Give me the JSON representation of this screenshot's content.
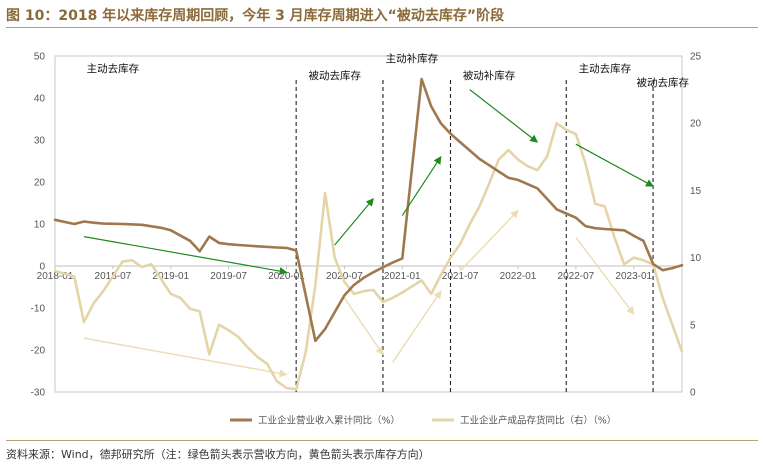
{
  "header": {
    "title": "图 10：2018 年以来库存周期回顾，今年 3 月库存周期进入“被动去库存”阶段"
  },
  "footer": {
    "source": "资料来源：Wind，德邦研究所（注：绿色箭头表示营收方向，黄色箭头表示库存方向）"
  },
  "colors": {
    "revenue": "#a07850",
    "inventory": "#e4d4a8",
    "green_arrow": "#1f8a1f",
    "yellow_arrow": "#ecdcb4",
    "divider": "#222222",
    "title": "#8b6a3a"
  },
  "chart_data": {
    "type": "line",
    "x_tick_labels": [
      "2018-01",
      "2018-07",
      "2019-01",
      "2019-07",
      "2020-01",
      "2020-07",
      "2021-01",
      "2021-07",
      "2022-01",
      "2022-07",
      "2023-01"
    ],
    "y_left": {
      "range": [
        -30,
        50
      ],
      "ticks": [
        50,
        40,
        30,
        20,
        10,
        0,
        -10,
        -20,
        -30
      ]
    },
    "y_right": {
      "range": [
        0,
        25
      ],
      "ticks": [
        25,
        20,
        15,
        10,
        5,
        0
      ]
    },
    "grid": false,
    "legend_position": "bottom-center",
    "phase_dividers": [
      "2020-02",
      "2020-11",
      "2021-06",
      "2022-06",
      "2023-03"
    ],
    "phase_labels": [
      {
        "text": "主动去库存",
        "at": "2018-07",
        "tier": "high"
      },
      {
        "text": "被动去库存",
        "at": "2020-06",
        "tier": "low"
      },
      {
        "text": "主动补库存",
        "at": "2021-02",
        "tier": "top"
      },
      {
        "text": "被动补库存",
        "at": "2021-10",
        "tier": "low"
      },
      {
        "text": "主动去库存",
        "at": "2022-10",
        "tier": "high"
      },
      {
        "text": "被动去库存",
        "at": "2023-04",
        "tier": "lowest"
      }
    ],
    "series": [
      {
        "name": "工业企业营业收入累计同比（%）",
        "axis": "left",
        "points": [
          [
            "2018-01",
            11.0
          ],
          [
            "2018-03",
            10.0
          ],
          [
            "2018-04",
            10.6
          ],
          [
            "2018-05",
            10.3
          ],
          [
            "2018-06",
            10.1
          ],
          [
            "2018-08",
            10.0
          ],
          [
            "2018-10",
            9.8
          ],
          [
            "2018-12",
            9.1
          ],
          [
            "2019-01",
            8.5
          ],
          [
            "2019-03",
            6.0
          ],
          [
            "2019-04",
            3.5
          ],
          [
            "2019-05",
            7.0
          ],
          [
            "2019-06",
            5.5
          ],
          [
            "2019-07",
            5.2
          ],
          [
            "2019-08",
            5.0
          ],
          [
            "2019-10",
            4.7
          ],
          [
            "2019-12",
            4.4
          ],
          [
            "2020-01",
            4.3
          ],
          [
            "2020-02",
            3.7
          ],
          [
            "2020-04",
            -17.8
          ],
          [
            "2020-05",
            -15.0
          ],
          [
            "2020-06",
            -11.0
          ],
          [
            "2020-07",
            -7.0
          ],
          [
            "2020-08",
            -4.5
          ],
          [
            "2020-09",
            -2.8
          ],
          [
            "2020-10",
            -1.5
          ],
          [
            "2020-11",
            -0.3
          ],
          [
            "2020-12",
            0.8
          ],
          [
            "2021-01",
            1.8
          ],
          [
            "2021-03",
            44.5
          ],
          [
            "2021-04",
            38.0
          ],
          [
            "2021-05",
            34.0
          ],
          [
            "2021-06",
            31.5
          ],
          [
            "2021-07",
            29.5
          ],
          [
            "2021-08",
            27.5
          ],
          [
            "2021-09",
            25.5
          ],
          [
            "2021-10",
            24.0
          ],
          [
            "2021-11",
            22.5
          ],
          [
            "2021-12",
            21.0
          ],
          [
            "2022-01",
            20.5
          ],
          [
            "2022-03",
            18.5
          ],
          [
            "2022-04",
            16.0
          ],
          [
            "2022-05",
            13.5
          ],
          [
            "2022-06",
            12.5
          ],
          [
            "2022-07",
            11.5
          ],
          [
            "2022-08",
            9.5
          ],
          [
            "2022-09",
            9.0
          ],
          [
            "2022-10",
            8.8
          ],
          [
            "2022-12",
            8.5
          ],
          [
            "2023-01",
            7.2
          ],
          [
            "2023-02",
            6.0
          ],
          [
            "2023-03",
            0.5
          ],
          [
            "2023-04",
            -1.0
          ],
          [
            "2023-05",
            -0.5
          ],
          [
            "2023-06",
            0.2
          ]
        ]
      },
      {
        "name": "工业企业产成品存货同比（右）（%）",
        "axis": "right",
        "points": [
          [
            "2018-01",
            9.0
          ],
          [
            "2018-03",
            8.6
          ],
          [
            "2018-04",
            5.2
          ],
          [
            "2018-05",
            6.6
          ],
          [
            "2018-06",
            7.5
          ],
          [
            "2018-08",
            9.7
          ],
          [
            "2018-09",
            9.8
          ],
          [
            "2018-10",
            9.3
          ],
          [
            "2018-11",
            9.5
          ],
          [
            "2018-12",
            8.4
          ],
          [
            "2019-01",
            7.3
          ],
          [
            "2019-02",
            7.0
          ],
          [
            "2019-03",
            6.2
          ],
          [
            "2019-04",
            6.0
          ],
          [
            "2019-05",
            2.8
          ],
          [
            "2019-06",
            5.0
          ],
          [
            "2019-07",
            4.6
          ],
          [
            "2019-08",
            4.1
          ],
          [
            "2019-09",
            3.3
          ],
          [
            "2019-10",
            2.6
          ],
          [
            "2019-11",
            2.1
          ],
          [
            "2019-12",
            0.8
          ],
          [
            "2020-01",
            0.3
          ],
          [
            "2020-02",
            0.2
          ],
          [
            "2020-03",
            3.0
          ],
          [
            "2020-04",
            8.0
          ],
          [
            "2020-05",
            14.8
          ],
          [
            "2020-06",
            10.0
          ],
          [
            "2020-07",
            8.2
          ],
          [
            "2020-08",
            7.3
          ],
          [
            "2020-09",
            7.5
          ],
          [
            "2020-10",
            7.6
          ],
          [
            "2020-11",
            6.7
          ],
          [
            "2020-12",
            7.0
          ],
          [
            "2021-01",
            7.4
          ],
          [
            "2021-03",
            8.3
          ],
          [
            "2021-04",
            7.3
          ],
          [
            "2021-05",
            8.7
          ],
          [
            "2021-06",
            10.0
          ],
          [
            "2021-07",
            11.0
          ],
          [
            "2021-08",
            12.5
          ],
          [
            "2021-09",
            13.8
          ],
          [
            "2021-10",
            15.5
          ],
          [
            "2021-11",
            17.3
          ],
          [
            "2021-12",
            18.0
          ],
          [
            "2022-01",
            17.3
          ],
          [
            "2022-02",
            16.8
          ],
          [
            "2022-03",
            16.5
          ],
          [
            "2022-04",
            17.5
          ],
          [
            "2022-05",
            20.0
          ],
          [
            "2022-06",
            19.5
          ],
          [
            "2022-07",
            19.2
          ],
          [
            "2022-08",
            17.0
          ],
          [
            "2022-09",
            14.0
          ],
          [
            "2022-10",
            13.8
          ],
          [
            "2022-11",
            11.5
          ],
          [
            "2022-12",
            9.5
          ],
          [
            "2023-01",
            10.0
          ],
          [
            "2023-02",
            9.8
          ],
          [
            "2023-03",
            9.5
          ],
          [
            "2023-04",
            7.0
          ],
          [
            "2023-05",
            5.0
          ],
          [
            "2023-06",
            3.0
          ]
        ]
      }
    ],
    "arrows": [
      {
        "color": "green",
        "from": [
          "2018-04",
          7.0
        ],
        "to": [
          "2020-01",
          -1.5
        ],
        "axis": "left"
      },
      {
        "color": "green",
        "from": [
          "2020-06",
          5.0
        ],
        "to": [
          "2020-10",
          16.0
        ],
        "axis": "left"
      },
      {
        "color": "green",
        "from": [
          "2021-01",
          12.0
        ],
        "to": [
          "2021-05",
          26.0
        ],
        "axis": "left"
      },
      {
        "color": "green",
        "from": [
          "2021-08",
          42.0
        ],
        "to": [
          "2022-03",
          29.5
        ],
        "axis": "left"
      },
      {
        "color": "green",
        "from": [
          "2022-07",
          29.0
        ],
        "to": [
          "2023-03",
          19.0
        ],
        "axis": "left"
      },
      {
        "color": "yellow",
        "from": [
          "2018-04",
          4.0
        ],
        "to": [
          "2020-01",
          1.3
        ],
        "axis": "right"
      },
      {
        "color": "yellow",
        "from": [
          "2020-07",
          7.0
        ],
        "to": [
          "2020-11",
          2.8
        ],
        "axis": "right"
      },
      {
        "color": "yellow",
        "from": [
          "2020-12",
          2.2
        ],
        "to": [
          "2021-05",
          7.5
        ],
        "axis": "right"
      },
      {
        "color": "yellow",
        "from": [
          "2021-07",
          9.0
        ],
        "to": [
          "2022-01",
          13.5
        ],
        "axis": "right"
      },
      {
        "color": "yellow",
        "from": [
          "2022-07",
          11.5
        ],
        "to": [
          "2023-01",
          5.8
        ],
        "axis": "right"
      }
    ]
  }
}
